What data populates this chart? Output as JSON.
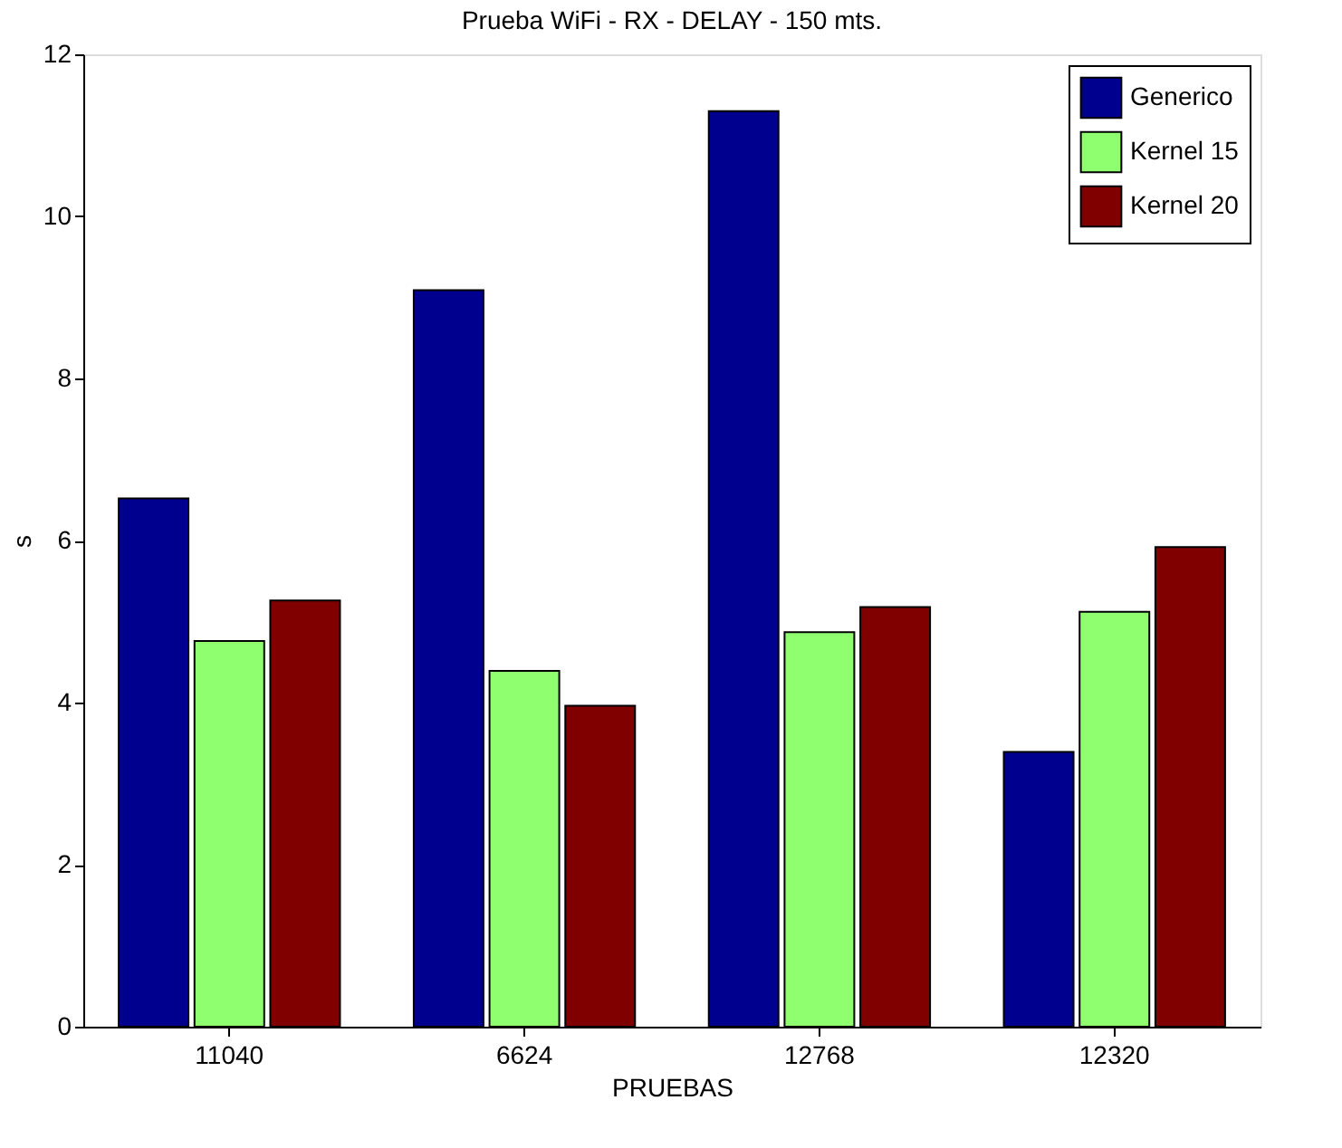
{
  "chart_data": {
    "type": "bar",
    "title": "Prueba WiFi - RX - DELAY - 150 mts.",
    "xlabel": "PRUEBAS",
    "ylabel": "s",
    "categories": [
      "11040",
      "6624",
      "12768",
      "12320"
    ],
    "series": [
      {
        "name": "Generico",
        "color": "#00008f",
        "values": [
          6.52,
          9.09,
          11.3,
          3.39
        ]
      },
      {
        "name": "Kernel 15",
        "color": "#8fff70",
        "values": [
          4.76,
          4.39,
          4.87,
          5.12
        ]
      },
      {
        "name": "Kernel 20",
        "color": "#800000",
        "values": [
          5.26,
          3.96,
          5.18,
          5.92
        ]
      }
    ],
    "ylim": [
      0,
      12
    ],
    "yticks": [
      0,
      2,
      4,
      6,
      8,
      10,
      12
    ],
    "grid": false,
    "legend": "top right"
  }
}
